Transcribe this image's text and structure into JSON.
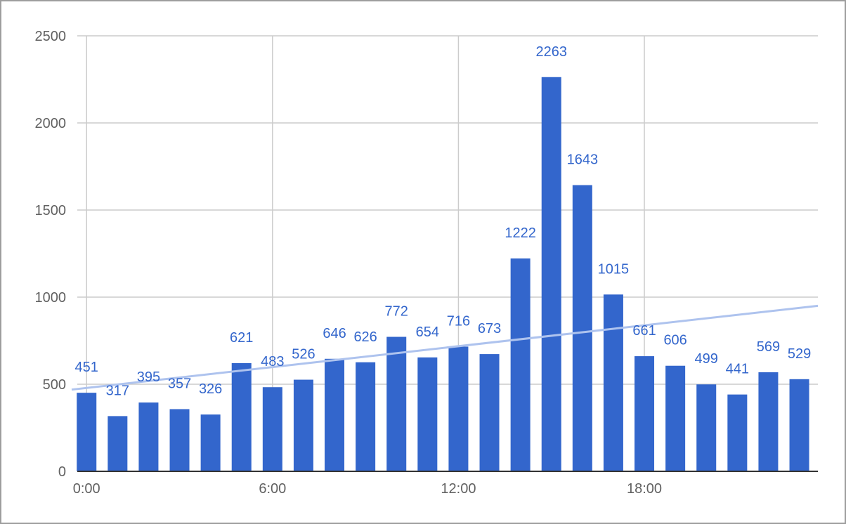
{
  "chart_data": {
    "type": "bar",
    "title": "",
    "xlabel": "",
    "ylabel": "",
    "x": [
      0,
      1,
      2,
      3,
      4,
      5,
      6,
      7,
      8,
      9,
      10,
      11,
      12,
      13,
      14,
      15,
      16,
      17,
      18,
      19,
      20,
      21,
      22,
      23
    ],
    "values": [
      451,
      317,
      395,
      357,
      326,
      621,
      483,
      526,
      646,
      626,
      772,
      654,
      716,
      673,
      1222,
      2263,
      1643,
      1015,
      661,
      606,
      499,
      441,
      569,
      529
    ],
    "x_ticks": [
      {
        "value": 0,
        "label": "0:00"
      },
      {
        "value": 6,
        "label": "6:00"
      },
      {
        "value": 12,
        "label": "12:00"
      },
      {
        "value": 18,
        "label": "18:00"
      }
    ],
    "y_ticks": [
      {
        "value": 0,
        "label": "0"
      },
      {
        "value": 500,
        "label": "500"
      },
      {
        "value": 1000,
        "label": "1000"
      },
      {
        "value": 1500,
        "label": "1500"
      },
      {
        "value": 2000,
        "label": "2000"
      },
      {
        "value": 2500,
        "label": "2500"
      }
    ],
    "ylim": [
      0,
      2500
    ],
    "xlim": [
      -0.3,
      23.6
    ],
    "grid": true,
    "legend": "none",
    "trendline": {
      "type": "linear",
      "y_at_x_start": 469,
      "y_at_x_end": 950
    },
    "colors": {
      "bar": "#3366cc",
      "label": "#3366cc",
      "trendline": "#aec3ee",
      "grid": "#cccccc",
      "axis": "#333333",
      "tick_text": "#616161"
    }
  }
}
